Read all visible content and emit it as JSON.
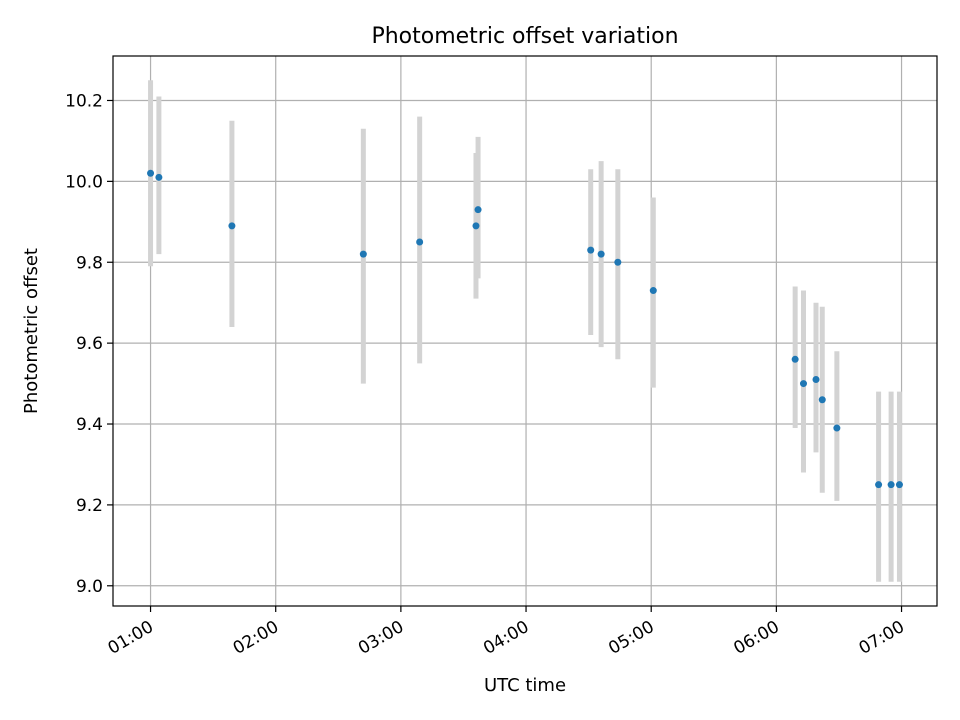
{
  "chart_data": {
    "type": "scatter",
    "title": "Photometric offset variation",
    "xlabel": "UTC time",
    "ylabel": "Photometric offset",
    "x_ticks": [
      "01:00",
      "02:00",
      "03:00",
      "04:00",
      "05:00",
      "06:00",
      "07:00"
    ],
    "y_ticks": [
      "9.0",
      "9.2",
      "9.4",
      "9.6",
      "9.8",
      "10.0",
      "10.2"
    ],
    "xlim": [
      "00:42",
      "07:17"
    ],
    "ylim": [
      8.95,
      10.31
    ],
    "grid": true,
    "point_color": "#1f77b4",
    "errorbar_color": "#d3d3d3",
    "points": [
      {
        "time": "01:00",
        "y": 10.02,
        "err_low": 9.79,
        "err_high": 10.25
      },
      {
        "time": "01:04",
        "y": 10.01,
        "err_low": 9.82,
        "err_high": 10.21
      },
      {
        "time": "01:39",
        "y": 9.89,
        "err_low": 9.64,
        "err_high": 10.15
      },
      {
        "time": "02:42",
        "y": 9.82,
        "err_low": 9.5,
        "err_high": 10.13
      },
      {
        "time": "03:09",
        "y": 9.85,
        "err_low": 9.55,
        "err_high": 10.16
      },
      {
        "time": "03:36",
        "y": 9.89,
        "err_low": 9.71,
        "err_high": 10.07
      },
      {
        "time": "03:37",
        "y": 9.93,
        "err_low": 9.76,
        "err_high": 10.11
      },
      {
        "time": "04:31",
        "y": 9.83,
        "err_low": 9.62,
        "err_high": 10.03
      },
      {
        "time": "04:36",
        "y": 9.82,
        "err_low": 9.59,
        "err_high": 10.05
      },
      {
        "time": "04:44",
        "y": 9.8,
        "err_low": 9.56,
        "err_high": 10.03
      },
      {
        "time": "05:01",
        "y": 9.73,
        "err_low": 9.49,
        "err_high": 9.96
      },
      {
        "time": "06:09",
        "y": 9.56,
        "err_low": 9.39,
        "err_high": 9.74
      },
      {
        "time": "06:13",
        "y": 9.5,
        "err_low": 9.28,
        "err_high": 9.73
      },
      {
        "time": "06:19",
        "y": 9.51,
        "err_low": 9.33,
        "err_high": 9.7
      },
      {
        "time": "06:22",
        "y": 9.46,
        "err_low": 9.23,
        "err_high": 9.69
      },
      {
        "time": "06:29",
        "y": 9.39,
        "err_low": 9.21,
        "err_high": 9.58
      },
      {
        "time": "06:49",
        "y": 9.25,
        "err_low": 9.01,
        "err_high": 9.48
      },
      {
        "time": "06:55",
        "y": 9.25,
        "err_low": 9.01,
        "err_high": 9.48
      },
      {
        "time": "06:59",
        "y": 9.25,
        "err_low": 9.01,
        "err_high": 9.48
      }
    ]
  }
}
